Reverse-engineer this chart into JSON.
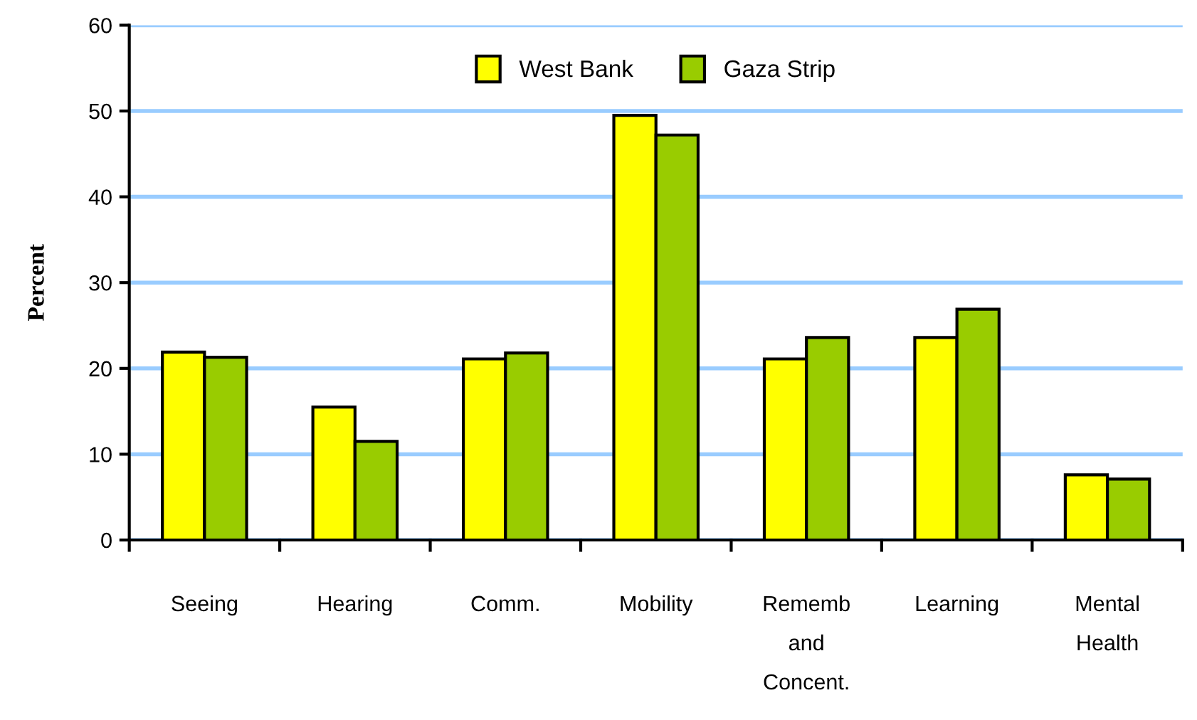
{
  "chart_data": {
    "type": "bar",
    "ylabel": "Percent",
    "categories": [
      "Seeing",
      "Hearing",
      "Comm.",
      "Mobility",
      "Rememb\nand\nConcent.",
      "Learning",
      "Mental\nHealth"
    ],
    "series": [
      {
        "name": "West Bank",
        "color": "#ffff00",
        "values": [
          21.9,
          15.5,
          21.1,
          49.5,
          21.1,
          23.6,
          7.6
        ]
      },
      {
        "name": "Gaza Strip",
        "color": "#99cc00",
        "values": [
          21.3,
          11.5,
          21.8,
          47.2,
          23.6,
          26.9,
          7.1
        ]
      }
    ],
    "ylim": [
      0,
      60
    ],
    "yticks": [
      0,
      10,
      20,
      30,
      40,
      50,
      60
    ],
    "grid": "y",
    "legend": "top"
  }
}
